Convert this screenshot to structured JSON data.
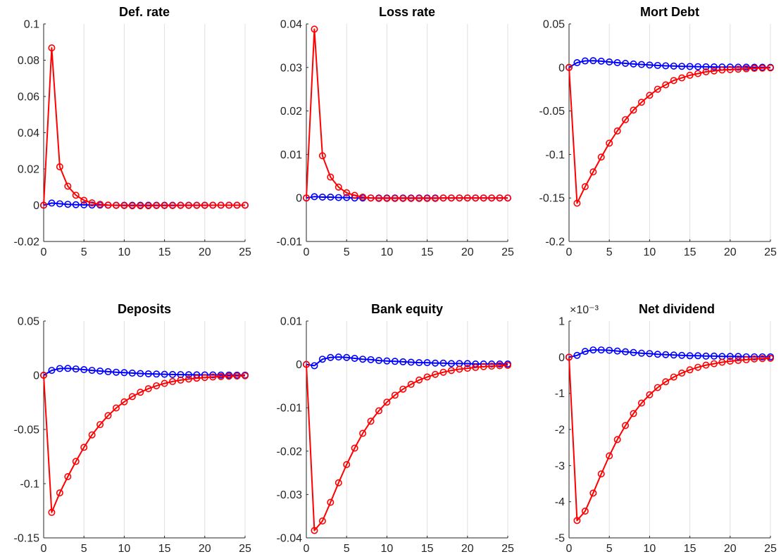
{
  "figure": {
    "background": "#ffffff",
    "grid_color": "#dfdfdf",
    "axis_color": "#262626"
  },
  "chart_data": [
    {
      "type": "line",
      "title": "Def. rate",
      "grid": "x",
      "xlim": [
        0,
        25
      ],
      "ylim": [
        -0.02,
        0.1
      ],
      "xticks": [
        0,
        5,
        10,
        15,
        20,
        25
      ],
      "xtick_labels": [
        "0",
        "5",
        "10",
        "15",
        "20",
        "25"
      ],
      "yticks": [
        -0.02,
        0,
        0.02,
        0.04,
        0.06,
        0.08,
        0.1
      ],
      "ytick_labels": [
        "-0.02",
        "0",
        "0.02",
        "0.04",
        "0.06",
        "0.08",
        "0.1"
      ],
      "x": [
        0,
        1,
        2,
        3,
        4,
        5,
        6,
        7,
        8,
        9,
        10,
        11,
        12,
        13,
        14,
        15,
        16,
        17,
        18,
        19,
        20,
        21,
        22,
        23,
        24,
        25
      ],
      "series": [
        {
          "color": "#0000ff",
          "marker": "circle",
          "values": [
            0,
            0.0012,
            0.0008,
            0.0005,
            0.0003,
            0.0002,
            0.0001,
            0.0001,
            0,
            0,
            0,
            0,
            0,
            0,
            0,
            0,
            0,
            0,
            0,
            0,
            0,
            0,
            0,
            0,
            0,
            0
          ]
        },
        {
          "color": "#ff0000",
          "marker": "circle",
          "values": [
            0,
            0.0868,
            0.0212,
            0.0105,
            0.0055,
            0.0027,
            0.0013,
            0.0005,
            0.0001,
            -0.0001,
            -0.0002,
            -0.0003,
            -0.0003,
            -0.0003,
            -0.0002,
            -0.0002,
            -0.0002,
            -0.0001,
            -0.0001,
            -0.0001,
            -0.0001,
            0,
            0,
            0,
            0,
            0
          ]
        }
      ]
    },
    {
      "type": "line",
      "title": "Loss rate",
      "grid": "x",
      "xlim": [
        0,
        25
      ],
      "ylim": [
        -0.01,
        0.04
      ],
      "xticks": [
        0,
        5,
        10,
        15,
        20,
        25
      ],
      "xtick_labels": [
        "0",
        "5",
        "10",
        "15",
        "20",
        "25"
      ],
      "yticks": [
        -0.01,
        0,
        0.01,
        0.02,
        0.03,
        0.04
      ],
      "ytick_labels": [
        "-0.01",
        "0",
        "0.01",
        "0.02",
        "0.03",
        "0.04"
      ],
      "x": [
        0,
        1,
        2,
        3,
        4,
        5,
        6,
        7,
        8,
        9,
        10,
        11,
        12,
        13,
        14,
        15,
        16,
        17,
        18,
        19,
        20,
        21,
        22,
        23,
        24,
        25
      ],
      "series": [
        {
          "color": "#0000ff",
          "marker": "circle",
          "values": [
            0,
            0.0003,
            0.0002,
            0.0002,
            0.0001,
            0.0001,
            0,
            0,
            0,
            0,
            0,
            0,
            0,
            0,
            0,
            0,
            0,
            0,
            0,
            0,
            0,
            0,
            0,
            0,
            0,
            0
          ]
        },
        {
          "color": "#ff0000",
          "marker": "circle",
          "values": [
            0,
            0.0388,
            0.0097,
            0.0048,
            0.0025,
            0.0012,
            0.0006,
            0.0002,
            0,
            -0.0001,
            -0.0001,
            -0.0001,
            -0.0001,
            -0.0001,
            -0.0001,
            -0.0001,
            -0.0001,
            0,
            0,
            0,
            0,
            0,
            0,
            0,
            0,
            0
          ]
        }
      ]
    },
    {
      "type": "line",
      "title": "Mort Debt",
      "grid": "x",
      "xlim": [
        0,
        25
      ],
      "ylim": [
        -0.2,
        0.05
      ],
      "xticks": [
        0,
        5,
        10,
        15,
        20,
        25
      ],
      "xtick_labels": [
        "0",
        "5",
        "10",
        "15",
        "20",
        "25"
      ],
      "yticks": [
        -0.2,
        -0.15,
        -0.1,
        -0.05,
        0,
        0.05
      ],
      "ytick_labels": [
        "-0.2",
        "-0.15",
        "-0.1",
        "-0.05",
        "0",
        "0.05"
      ],
      "x": [
        0,
        1,
        2,
        3,
        4,
        5,
        6,
        7,
        8,
        9,
        10,
        11,
        12,
        13,
        14,
        15,
        16,
        17,
        18,
        19,
        20,
        21,
        22,
        23,
        24,
        25
      ],
      "series": [
        {
          "color": "#0000ff",
          "marker": "circle",
          "values": [
            0,
            0.0055,
            0.0075,
            0.0078,
            0.0072,
            0.0063,
            0.0055,
            0.0047,
            0.004,
            0.0034,
            0.0028,
            0.0023,
            0.0019,
            0.0016,
            0.0013,
            0.0011,
            0.0009,
            0.0007,
            0.0006,
            0.0005,
            0.0004,
            0.0003,
            0.0003,
            0.0002,
            0.0002,
            0.0001
          ]
        },
        {
          "color": "#ff0000",
          "marker": "circle",
          "values": [
            0,
            -0.156,
            -0.137,
            -0.12,
            -0.103,
            -0.087,
            -0.073,
            -0.06,
            -0.049,
            -0.04,
            -0.032,
            -0.025,
            -0.02,
            -0.015,
            -0.012,
            -0.009,
            -0.007,
            -0.005,
            -0.004,
            -0.003,
            -0.0025,
            -0.002,
            -0.0015,
            -0.001,
            -0.0008,
            -0.0005
          ]
        }
      ]
    },
    {
      "type": "line",
      "title": "Deposits",
      "grid": "x",
      "xlim": [
        0,
        25
      ],
      "ylim": [
        -0.15,
        0.05
      ],
      "xticks": [
        0,
        5,
        10,
        15,
        20,
        25
      ],
      "xtick_labels": [
        "0",
        "5",
        "10",
        "15",
        "20",
        "25"
      ],
      "yticks": [
        -0.15,
        -0.1,
        -0.05,
        0,
        0.05
      ],
      "ytick_labels": [
        "-0.15",
        "-0.1",
        "-0.05",
        "0",
        "0.05"
      ],
      "x": [
        0,
        1,
        2,
        3,
        4,
        5,
        6,
        7,
        8,
        9,
        10,
        11,
        12,
        13,
        14,
        15,
        16,
        17,
        18,
        19,
        20,
        21,
        22,
        23,
        24,
        25
      ],
      "series": [
        {
          "color": "#0000ff",
          "marker": "circle",
          "values": [
            0,
            0.0045,
            0.0062,
            0.0063,
            0.0058,
            0.0052,
            0.0045,
            0.0039,
            0.0033,
            0.0028,
            0.0024,
            0.002,
            0.0016,
            0.0013,
            0.0011,
            0.0009,
            0.0007,
            0.0006,
            0.0005,
            0.0004,
            0.0003,
            0.0003,
            0.0002,
            0.0002,
            0.0001,
            0.0001
          ]
        },
        {
          "color": "#ff0000",
          "marker": "circle",
          "values": [
            0,
            -0.1265,
            -0.1085,
            -0.0935,
            -0.0795,
            -0.0665,
            -0.055,
            -0.0455,
            -0.0372,
            -0.0302,
            -0.0245,
            -0.0197,
            -0.0157,
            -0.0124,
            -0.0097,
            -0.0075,
            -0.0058,
            -0.0045,
            -0.0035,
            -0.0027,
            -0.0021,
            -0.0016,
            -0.0012,
            -0.0009,
            -0.0007,
            -0.0005
          ]
        }
      ]
    },
    {
      "type": "line",
      "title": "Bank equity",
      "grid": "x",
      "xlim": [
        0,
        25
      ],
      "ylim": [
        -0.04,
        0.01
      ],
      "xticks": [
        0,
        5,
        10,
        15,
        20,
        25
      ],
      "xtick_labels": [
        "0",
        "5",
        "10",
        "15",
        "20",
        "25"
      ],
      "yticks": [
        -0.04,
        -0.03,
        -0.02,
        -0.01,
        0,
        0.01
      ],
      "ytick_labels": [
        "-0.04",
        "-0.03",
        "-0.02",
        "-0.01",
        "0",
        "0.01"
      ],
      "x": [
        0,
        1,
        2,
        3,
        4,
        5,
        6,
        7,
        8,
        9,
        10,
        11,
        12,
        13,
        14,
        15,
        16,
        17,
        18,
        19,
        20,
        21,
        22,
        23,
        24,
        25
      ],
      "series": [
        {
          "color": "#0000ff",
          "marker": "circle",
          "values": [
            0,
            -0.0003,
            0.0012,
            0.0016,
            0.0017,
            0.0016,
            0.0014,
            0.0012,
            0.0011,
            0.0009,
            0.0008,
            0.0007,
            0.0006,
            0.0005,
            0.0004,
            0.0004,
            0.0003,
            0.0003,
            0.0002,
            0.0002,
            0.0002,
            0.0001,
            0.0001,
            0.0001,
            0.0001,
            0.0001
          ]
        },
        {
          "color": "#ff0000",
          "marker": "circle",
          "values": [
            0,
            -0.0383,
            -0.0361,
            -0.0318,
            -0.0273,
            -0.0231,
            -0.0193,
            -0.0159,
            -0.0131,
            -0.0107,
            -0.0087,
            -0.0071,
            -0.0057,
            -0.0046,
            -0.0036,
            -0.0029,
            -0.0023,
            -0.0018,
            -0.0014,
            -0.0011,
            -0.0009,
            -0.0007,
            -0.0005,
            -0.0004,
            -0.0003,
            -0.0002
          ]
        }
      ]
    },
    {
      "type": "line",
      "title": "Net dividend",
      "grid": "x",
      "xlim": [
        0,
        25
      ],
      "ylim": [
        -0.005,
        0.001
      ],
      "y_exponent_label": "×10⁻³",
      "xticks": [
        0,
        5,
        10,
        15,
        20,
        25
      ],
      "xtick_labels": [
        "0",
        "5",
        "10",
        "15",
        "20",
        "25"
      ],
      "yticks": [
        -0.005,
        -0.004,
        -0.003,
        -0.002,
        -0.001,
        0,
        0.001
      ],
      "ytick_labels": [
        "-5",
        "-4",
        "-3",
        "-2",
        "-1",
        "0",
        "1"
      ],
      "x": [
        0,
        1,
        2,
        3,
        4,
        5,
        6,
        7,
        8,
        9,
        10,
        11,
        12,
        13,
        14,
        15,
        16,
        17,
        18,
        19,
        20,
        21,
        22,
        23,
        24,
        25
      ],
      "series": [
        {
          "color": "#0000ff",
          "marker": "circle",
          "values": [
            0,
            5e-05,
            0.00016,
            0.0002,
            0.0002,
            0.00019,
            0.00017,
            0.00015,
            0.00013,
            0.00011,
            0.0001,
            8e-05,
            7e-05,
            6e-05,
            5e-05,
            4e-05,
            4e-05,
            3e-05,
            3e-05,
            2e-05,
            2e-05,
            2e-05,
            1e-05,
            1e-05,
            1e-05,
            1e-05
          ]
        },
        {
          "color": "#ff0000",
          "marker": "circle",
          "values": [
            0,
            -0.00452,
            -0.00426,
            -0.00376,
            -0.00323,
            -0.00273,
            -0.00228,
            -0.00189,
            -0.00156,
            -0.00127,
            -0.00104,
            -0.00084,
            -0.00068,
            -0.00055,
            -0.00044,
            -0.00035,
            -0.00028,
            -0.00022,
            -0.00018,
            -0.00014,
            -0.00011,
            -9e-05,
            -7e-05,
            -5e-05,
            -4e-05,
            -3e-05
          ]
        }
      ]
    }
  ]
}
